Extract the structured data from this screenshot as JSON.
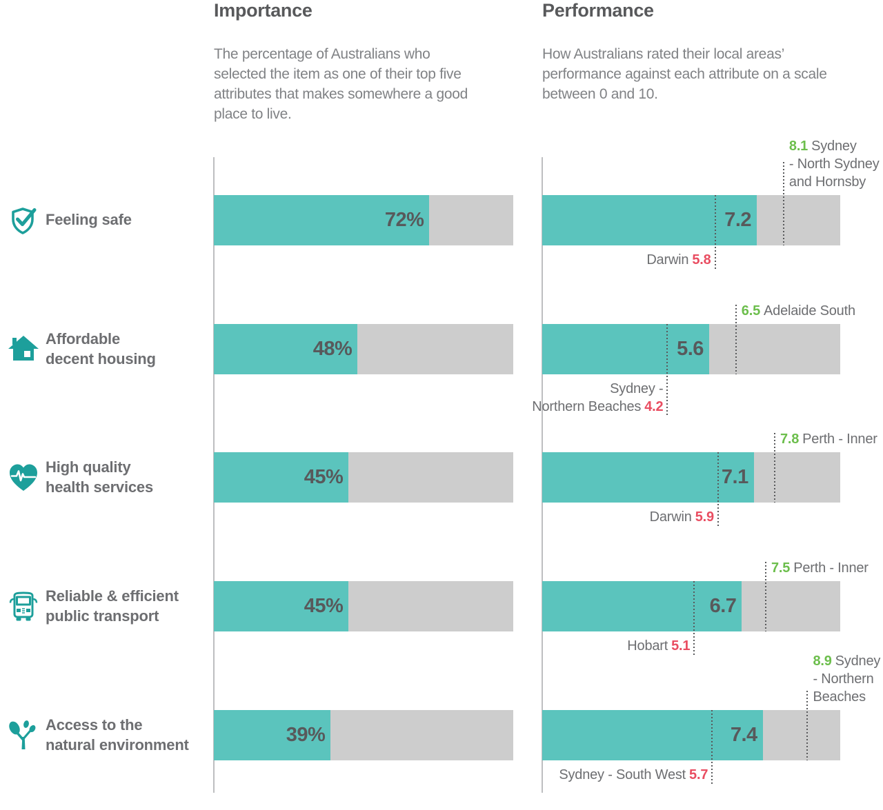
{
  "columns": {
    "importance": {
      "title": "Importance",
      "description": "The percentage of Australians who selected the item as one of their top five attributes that makes somewhere a good place to live."
    },
    "performance": {
      "title": "Performance",
      "description": "How Australians rated their local areas’ performance against each attribute on a scale between 0 and 10."
    }
  },
  "colors": {
    "teal_bar": "#5BC4BD",
    "track_gray": "#CDCDCD",
    "axis_gray": "#BDBEC0",
    "dark_text": "#58595B",
    "label_gray": "#6D6E71",
    "desc_gray": "#808285",
    "best_green": "#6CBE4C",
    "worst_red": "#E94D61",
    "dotted_dark": "#58595B",
    "icon_teal": "#1D9F9B"
  },
  "rows": [
    {
      "icon": "shield-check-icon",
      "label_lines": [
        "Feeling safe"
      ],
      "importance_pct": 72,
      "importance_label": "72%",
      "performance_value": 7.2,
      "performance_label": "7.2",
      "max": {
        "value": 8.1,
        "value_label": "8.1",
        "lines": [
          "Sydney",
          "- North Sydney",
          "and Hornsby"
        ]
      },
      "min": {
        "value": 5.8,
        "value_label": "5.8",
        "lines": [
          "Darwin"
        ]
      }
    },
    {
      "icon": "house-icon",
      "label_lines": [
        "Affordable",
        "decent housing"
      ],
      "importance_pct": 48,
      "importance_label": "48%",
      "performance_value": 5.6,
      "performance_label": "5.6",
      "max": {
        "value": 6.5,
        "value_label": "6.5",
        "lines": [
          "Adelaide South"
        ]
      },
      "min": {
        "value": 4.2,
        "value_label": "4.2",
        "lines": [
          "Sydney -",
          "Northern Beaches"
        ]
      }
    },
    {
      "icon": "heart-pulse-icon",
      "label_lines": [
        "High quality",
        "health services"
      ],
      "importance_pct": 45,
      "importance_label": "45%",
      "performance_value": 7.1,
      "performance_label": "7.1",
      "max": {
        "value": 7.8,
        "value_label": "7.8",
        "lines": [
          "Perth - Inner"
        ]
      },
      "min": {
        "value": 5.9,
        "value_label": "5.9",
        "lines": [
          "Darwin"
        ]
      }
    },
    {
      "icon": "bus-icon",
      "label_lines": [
        "Reliable & efficient",
        "public transport"
      ],
      "importance_pct": 45,
      "importance_label": "45%",
      "performance_value": 6.7,
      "performance_label": "6.7",
      "max": {
        "value": 7.5,
        "value_label": "7.5",
        "lines": [
          "Perth - Inner"
        ]
      },
      "min": {
        "value": 5.1,
        "value_label": "5.1",
        "lines": [
          "Hobart"
        ]
      }
    },
    {
      "icon": "tree-icon",
      "label_lines": [
        "Access to the",
        "natural environment"
      ],
      "importance_pct": 39,
      "importance_label": "39%",
      "performance_value": 7.4,
      "performance_label": "7.4",
      "max": {
        "value": 8.9,
        "value_label": "8.9",
        "lines": [
          "Sydney",
          "- Northern",
          "Beaches"
        ]
      },
      "min": {
        "value": 5.7,
        "value_label": "5.7",
        "lines": [
          "Sydney - South West"
        ]
      }
    }
  ],
  "chart_data": {
    "type": "bar",
    "orientation": "horizontal",
    "grid": false,
    "legend": false,
    "categories": [
      "Feeling safe",
      "Affordable decent housing",
      "High quality health services",
      "Reliable & efficient public transport",
      "Access to the natural environment"
    ],
    "series": [
      {
        "name": "Importance",
        "unit": "%",
        "range": [
          0,
          100
        ],
        "values": [
          72,
          48,
          45,
          45,
          39
        ]
      },
      {
        "name": "Performance",
        "unit": "rating 0-10",
        "range": [
          0,
          10
        ],
        "values": [
          7.2,
          5.6,
          7.1,
          6.7,
          7.4
        ]
      }
    ],
    "performance_extremes": [
      {
        "category": "Feeling safe",
        "best": {
          "rating": 8.1,
          "region": "Sydney - North Sydney and Hornsby"
        },
        "worst": {
          "rating": 5.8,
          "region": "Darwin"
        }
      },
      {
        "category": "Affordable decent housing",
        "best": {
          "rating": 6.5,
          "region": "Adelaide South"
        },
        "worst": {
          "rating": 4.2,
          "region": "Sydney - Northern Beaches"
        }
      },
      {
        "category": "High quality health services",
        "best": {
          "rating": 7.8,
          "region": "Perth - Inner"
        },
        "worst": {
          "rating": 5.9,
          "region": "Darwin"
        }
      },
      {
        "category": "Reliable & efficient public transport",
        "best": {
          "rating": 7.5,
          "region": "Perth - Inner"
        },
        "worst": {
          "rating": 5.1,
          "region": "Hobart"
        }
      },
      {
        "category": "Access to the natural environment",
        "best": {
          "rating": 8.9,
          "region": "Sydney - Northern Beaches"
        },
        "worst": {
          "rating": 5.7,
          "region": "Sydney - South West"
        }
      }
    ]
  }
}
